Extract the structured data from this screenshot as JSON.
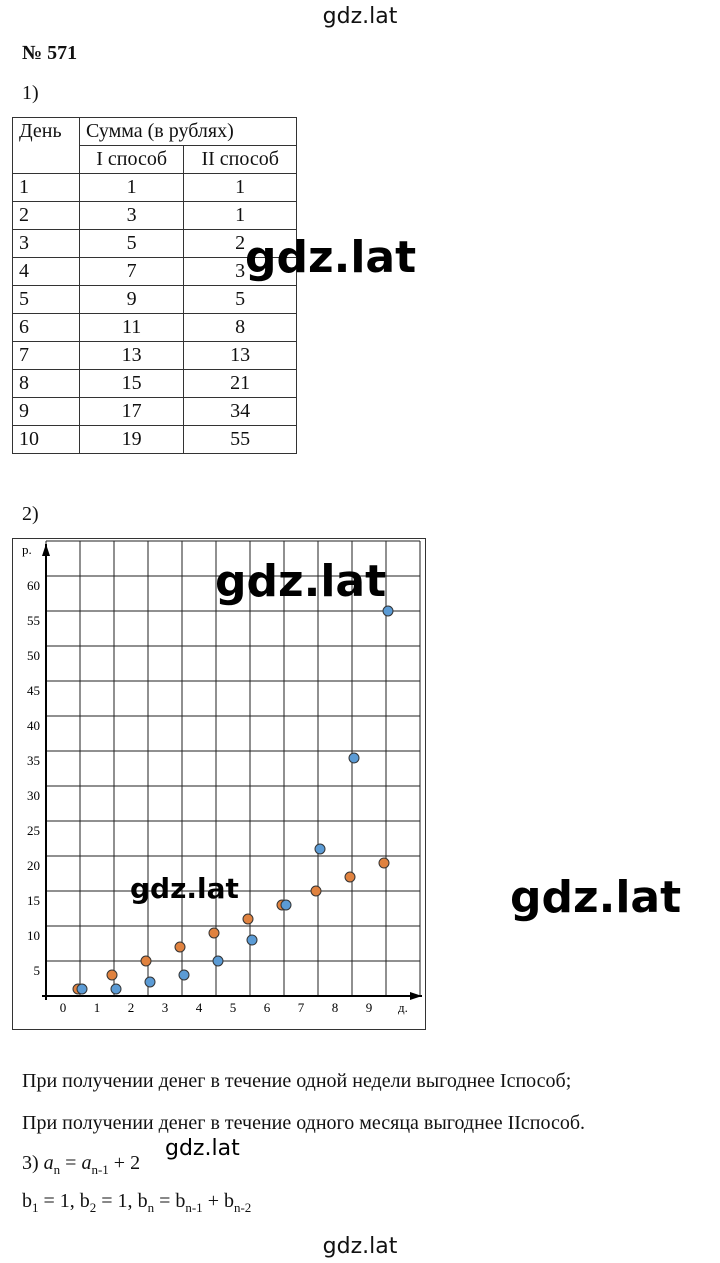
{
  "header": "gdz.lat",
  "problem_number": "№ 571",
  "part1_label": "1)",
  "table": {
    "header": [
      "День",
      "Сумма (в рублях)"
    ],
    "subheader": [
      "I способ",
      "II способ"
    ],
    "rows": [
      [
        "1",
        "1",
        "1"
      ],
      [
        "2",
        "3",
        "1"
      ],
      [
        "3",
        "5",
        "2"
      ],
      [
        "4",
        "7",
        "3"
      ],
      [
        "5",
        "9",
        "5"
      ],
      [
        "6",
        "11",
        "8"
      ],
      [
        "7",
        "13",
        "13"
      ],
      [
        "8",
        "15",
        "21"
      ],
      [
        "9",
        "17",
        "34"
      ],
      [
        "10",
        "19",
        "55"
      ]
    ]
  },
  "part2_label": "2)",
  "chart_data": {
    "type": "scatter",
    "y_label": "р.",
    "x_label": "д.",
    "x": [
      1,
      2,
      3,
      4,
      5,
      6,
      7,
      8,
      9,
      10
    ],
    "series": [
      {
        "color": "#e0823f",
        "values": [
          1,
          3,
          5,
          7,
          9,
          11,
          13,
          15,
          17,
          19
        ]
      },
      {
        "color": "#5b9bd5",
        "values": [
          1,
          1,
          2,
          3,
          5,
          8,
          13,
          21,
          34,
          55
        ]
      }
    ],
    "xlim": [
      0,
      11
    ],
    "xticks": [
      0,
      1,
      2,
      3,
      4,
      5,
      6,
      7,
      8,
      9
    ],
    "ylim": [
      0,
      65
    ],
    "yticks": [
      5,
      10,
      15,
      20,
      25,
      30,
      35,
      40,
      45,
      50,
      55,
      60
    ],
    "grid": true
  },
  "conclusions": [
    "При получении денег в течение одной недели выгоднее Iспособ;",
    "При получении денег в течение одного месяца выгоднее IIспособ."
  ],
  "formula1": [
    "3)",
    "a",
    "n",
    "=",
    "a",
    "n-1",
    "+ 2"
  ],
  "formula2": [
    "b",
    "1",
    "= 1,",
    "b",
    "2",
    "= 1,",
    "b",
    "n",
    "=",
    "b",
    "n-1",
    "+",
    "b",
    "n-2"
  ],
  "footer": "gdz.lat",
  "watermarks": [
    "gdz.lat",
    "gdz.lat",
    "gdz.lat",
    "gdz.lat",
    "gdz.lat"
  ]
}
